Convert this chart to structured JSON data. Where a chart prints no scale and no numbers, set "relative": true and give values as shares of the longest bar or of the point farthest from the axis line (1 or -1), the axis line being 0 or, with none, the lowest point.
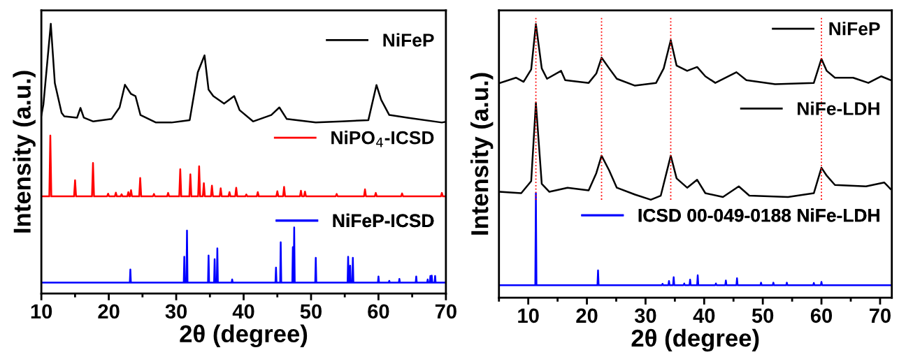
{
  "chart_data": [
    {
      "type": "line",
      "relative": true,
      "xlabel": "2θ (degree)",
      "ylabel": "Intensity (a.u.)",
      "xlim": [
        10,
        70
      ],
      "xticks": [
        10,
        {
          "value": 15,
          "label": null
        },
        20,
        {
          "value": 25,
          "label": null
        },
        30,
        {
          "value": 35,
          "label": null
        },
        40,
        {
          "value": 45,
          "label": null
        },
        50,
        {
          "value": 55,
          "label": null
        },
        60,
        {
          "value": 65,
          "label": null
        },
        70
      ],
      "tick_labels": "x",
      "grid": false,
      "legend": "right",
      "line_style": "solid",
      "series": [
        {
          "name": "NiFeP",
          "color": "#000000",
          "x": [
            10,
            10.3,
            11.4,
            12.0,
            13.0,
            13.4,
            15.3,
            15.8,
            16.3,
            17.7,
            20.4,
            21.6,
            22.4,
            23.3,
            23.96,
            24.7,
            27.0,
            29.3,
            32.0,
            33.2,
            34.2,
            34.8,
            35.5,
            37.1,
            38.6,
            39.4,
            41.4,
            44.1,
            45.3,
            46.4,
            50.7,
            54.6,
            58.5,
            59.7,
            60.4,
            61.6,
            64.3,
            69.4,
            70
          ],
          "values": [
            0.66,
            0.7,
            1.0,
            0.78,
            0.67,
            0.657,
            0.652,
            0.688,
            0.652,
            0.638,
            0.647,
            0.69,
            0.774,
            0.74,
            0.732,
            0.662,
            0.634,
            0.634,
            0.643,
            0.82,
            0.883,
            0.756,
            0.732,
            0.704,
            0.732,
            0.68,
            0.638,
            0.662,
            0.69,
            0.647,
            0.634,
            0.638,
            0.643,
            0.773,
            0.718,
            0.662,
            0.652,
            0.634,
            0.637
          ]
        },
        {
          "name": "NiPO$_{4}$-ICSD",
          "color": "#ff0000",
          "x": [
            10,
            11.18,
            11.33,
            11.48,
            14.85,
            15.0,
            15.15,
            17.51,
            17.66,
            17.81,
            19.75,
            19.9,
            20.05,
            20.9,
            21.05,
            21.2,
            21.75,
            21.9,
            22.05,
            22.75,
            22.9,
            23.05,
            23.15,
            23.3,
            23.45,
            24.51,
            24.66,
            24.81,
            26.55,
            26.7,
            26.85,
            28.65,
            28.8,
            28.95,
            30.45,
            30.6,
            30.75,
            31.95,
            32.1,
            32.25,
            33.25,
            33.4,
            33.55,
            33.95,
            34.1,
            34.25,
            35.15,
            35.3,
            35.45,
            36.45,
            36.6,
            36.75,
            37.75,
            37.9,
            38.05,
            38.75,
            38.9,
            39.05,
            40.25,
            40.4,
            40.55,
            41.95,
            42.1,
            42.25,
            44.85,
            45.0,
            45.15,
            45.85,
            46.0,
            46.15,
            48.35,
            48.5,
            48.65,
            48.95,
            49.1,
            49.25,
            53.65,
            53.8,
            53.95,
            57.85,
            58.0,
            58.15,
            59.45,
            59.6,
            59.75,
            63.35,
            63.5,
            63.65,
            69.25,
            69.4,
            69.55,
            70
          ],
          "values": [
            0.36,
            0.36,
            0.586,
            0.36,
            0.36,
            0.42,
            0.36,
            0.36,
            0.484,
            0.36,
            0.36,
            0.37,
            0.36,
            0.36,
            0.374,
            0.36,
            0.36,
            0.368,
            0.36,
            0.36,
            0.376,
            0.36,
            0.36,
            0.383,
            0.36,
            0.36,
            0.428,
            0.36,
            0.36,
            0.369,
            0.36,
            0.36,
            0.373,
            0.36,
            0.36,
            0.461,
            0.36,
            0.36,
            0.442,
            0.36,
            0.36,
            0.472,
            0.36,
            0.36,
            0.409,
            0.36,
            0.36,
            0.4,
            0.36,
            0.36,
            0.39,
            0.36,
            0.36,
            0.376,
            0.36,
            0.36,
            0.392,
            0.36,
            0.36,
            0.367,
            0.36,
            0.36,
            0.376,
            0.36,
            0.36,
            0.379,
            0.36,
            0.36,
            0.395,
            0.36,
            0.36,
            0.381,
            0.36,
            0.36,
            0.378,
            0.36,
            0.36,
            0.369,
            0.36,
            0.36,
            0.386,
            0.36,
            0.36,
            0.373,
            0.36,
            0.36,
            0.371,
            0.36,
            0.36,
            0.373,
            0.36,
            0.36
          ]
        },
        {
          "name": "NiFeP-ICSD",
          "color": "#0000ff",
          "x": [
            10,
            23.12,
            23.2,
            23.28,
            31.12,
            31.2,
            31.28,
            31.52,
            31.6,
            31.68,
            34.72,
            34.8,
            34.88,
            35.62,
            35.7,
            35.78,
            36.02,
            36.1,
            36.18,
            38.22,
            38.3,
            38.38,
            44.72,
            44.8,
            44.88,
            45.42,
            45.5,
            45.58,
            47.22,
            47.3,
            47.38,
            47.42,
            47.5,
            47.58,
            50.62,
            50.7,
            50.78,
            55.42,
            55.5,
            55.58,
            55.72,
            55.8,
            55.88,
            56.12,
            56.2,
            56.28,
            59.92,
            60.0,
            60.08,
            61.52,
            61.6,
            61.68,
            63.02,
            63.1,
            63.18,
            65.52,
            65.6,
            65.68,
            67.22,
            67.3,
            67.38,
            67.62,
            67.7,
            67.78,
            67.82,
            67.9,
            67.98,
            68.32,
            68.4,
            68.48,
            70
          ],
          "values": [
            0.04,
            0.04,
            0.089,
            0.04,
            0.04,
            0.136,
            0.04,
            0.04,
            0.233,
            0.04,
            0.04,
            0.141,
            0.04,
            0.04,
            0.127,
            0.04,
            0.04,
            0.167,
            0.04,
            0.04,
            0.052,
            0.04,
            0.04,
            0.096,
            0.04,
            0.04,
            0.19,
            0.04,
            0.04,
            0.172,
            0.04,
            0.04,
            0.245,
            0.04,
            0.04,
            0.132,
            0.04,
            0.04,
            0.136,
            0.04,
            0.04,
            0.103,
            0.04,
            0.04,
            0.132,
            0.04,
            0.04,
            0.063,
            0.04,
            0.04,
            0.047,
            0.04,
            0.04,
            0.054,
            0.04,
            0.04,
            0.063,
            0.04,
            0.04,
            0.052,
            0.04,
            0.04,
            0.065,
            0.04,
            0.04,
            0.066,
            0.04,
            0.04,
            0.065,
            0.04,
            0.04
          ]
        }
      ]
    },
    {
      "type": "line",
      "relative": true,
      "xlabel": "2θ (degree)",
      "ylabel": "Intensity (a.u.)",
      "xlim": [
        5,
        72
      ],
      "xticks": [
        {
          "value": 5,
          "label": null
        },
        10,
        {
          "value": 15,
          "label": null
        },
        20,
        {
          "value": 25,
          "label": null
        },
        30,
        {
          "value": 35,
          "label": null
        },
        40,
        {
          "value": 45,
          "label": null
        },
        50,
        {
          "value": 55,
          "label": null
        },
        60,
        {
          "value": 65,
          "label": null
        },
        70
      ],
      "tick_labels": "x",
      "grid": false,
      "legend": "right",
      "line_style": "solid",
      "ref_lines": [
        {
          "axis": "x",
          "value": 11.3,
          "color": "#ff0000",
          "line_style": "dotted"
        },
        {
          "axis": "x",
          "value": 22.5,
          "color": "#ff0000",
          "line_style": "dotted"
        },
        {
          "axis": "x",
          "value": 34.3,
          "color": "#ff0000",
          "line_style": "dotted"
        },
        {
          "axis": "x",
          "value": 60.0,
          "color": "#ff0000",
          "line_style": "dotted"
        }
      ],
      "series": [
        {
          "name": "NiFeP",
          "color": "#000000",
          "x": [
            5.2,
            7.9,
            9.2,
            10.5,
            11.3,
            12.3,
            13.2,
            15.6,
            16.3,
            20.3,
            21.6,
            22.5,
            23.8,
            25.1,
            28.2,
            31.8,
            33.1,
            34.3,
            35.3,
            37.1,
            38.8,
            40.2,
            41.9,
            45.5,
            47.2,
            52.1,
            58.7,
            60.0,
            60.9,
            62.3,
            65.4,
            68.0,
            70.2,
            71.8
          ],
          "values": [
            0.785,
            0.804,
            0.789,
            0.834,
            1.0,
            0.838,
            0.8,
            0.829,
            0.795,
            0.785,
            0.819,
            0.877,
            0.838,
            0.8,
            0.775,
            0.785,
            0.838,
            0.941,
            0.848,
            0.829,
            0.843,
            0.809,
            0.785,
            0.824,
            0.795,
            0.78,
            0.785,
            0.873,
            0.829,
            0.804,
            0.804,
            0.785,
            0.809,
            0.795
          ]
        },
        {
          "name": "NiFe-LDH",
          "color": "#000000",
          "x": [
            5.2,
            8.8,
            10.5,
            11.3,
            12.3,
            13.6,
            16.7,
            20.3,
            21.6,
            22.5,
            23.8,
            25.1,
            28.2,
            30.9,
            32.6,
            34.3,
            35.3,
            37.1,
            38.8,
            40.2,
            43.2,
            45.9,
            47.7,
            54.3,
            58.7,
            60.0,
            60.9,
            62.3,
            67.6,
            70.7,
            71.8
          ],
          "values": [
            0.387,
            0.382,
            0.426,
            0.712,
            0.416,
            0.387,
            0.402,
            0.392,
            0.455,
            0.519,
            0.465,
            0.402,
            0.377,
            0.358,
            0.373,
            0.519,
            0.436,
            0.402,
            0.431,
            0.382,
            0.368,
            0.407,
            0.373,
            0.368,
            0.382,
            0.475,
            0.446,
            0.412,
            0.407,
            0.421,
            0.397
          ]
        },
        {
          "name": "ICSD 00-049-0188 NiFe-LDH",
          "color": "#0000ff",
          "x": [
            5,
            11.2,
            11.3,
            11.4,
            21.8,
            21.9,
            22.0,
            32.8,
            32.9,
            33.0,
            33.9,
            34.0,
            34.1,
            34.7,
            34.8,
            34.9,
            36.5,
            36.6,
            36.7,
            37.5,
            37.6,
            37.7,
            38.8,
            38.9,
            39.0,
            41.9,
            42.0,
            42.1,
            43.6,
            43.7,
            43.8,
            45.5,
            45.6,
            45.7,
            49.6,
            49.7,
            49.8,
            51.7,
            51.8,
            51.9,
            54.0,
            54.1,
            54.2,
            58.6,
            58.7,
            58.8,
            59.9,
            60.0,
            60.1,
            72
          ],
          "values": [
            0.046,
            0.046,
            0.382,
            0.046,
            0.046,
            0.1,
            0.046,
            0.046,
            0.051,
            0.046,
            0.046,
            0.061,
            0.046,
            0.046,
            0.075,
            0.046,
            0.046,
            0.052,
            0.046,
            0.046,
            0.066,
            0.046,
            0.046,
            0.082,
            0.046,
            0.046,
            0.052,
            0.046,
            0.046,
            0.063,
            0.046,
            0.046,
            0.071,
            0.046,
            0.046,
            0.055,
            0.046,
            0.046,
            0.055,
            0.046,
            0.046,
            0.055,
            0.046,
            0.046,
            0.054,
            0.046,
            0.046,
            0.058,
            0.046,
            0.046
          ]
        }
      ]
    }
  ]
}
